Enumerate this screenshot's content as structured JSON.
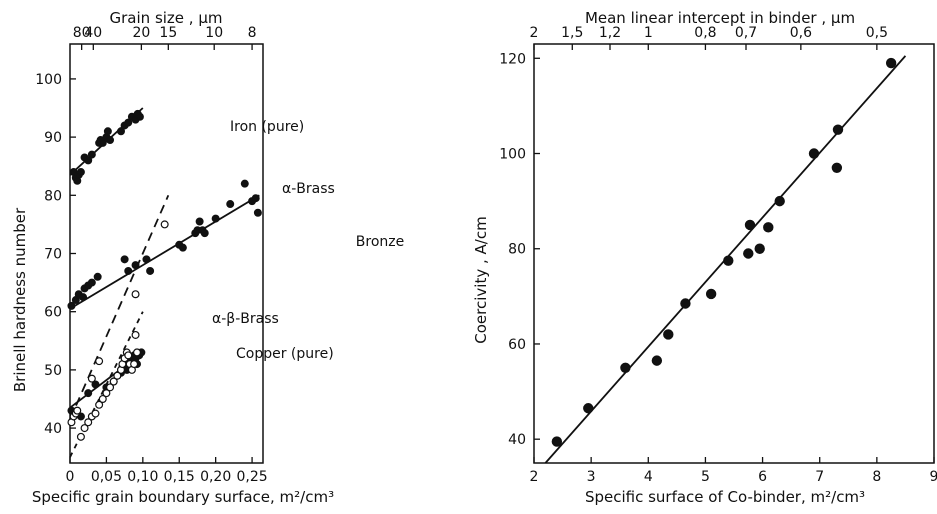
{
  "chart_data": [
    {
      "type": "scatter",
      "xlabel": "Specific grain boundary surface, m²/cm³",
      "ylabel": "Brinell hardness number",
      "top_axis_label": "Grain size , μm",
      "xlim": [
        0,
        0.265
      ],
      "ylim": [
        34,
        106
      ],
      "x_ticks": [
        0,
        0.05,
        0.1,
        0.15,
        0.2,
        0.25
      ],
      "x_tick_labels": [
        "0",
        "0,05",
        "0,10",
        "0,15",
        "0,20",
        "0,25"
      ],
      "y_ticks": [
        40,
        50,
        60,
        70,
        80,
        90,
        100
      ],
      "y_tick_labels": [
        "40",
        "50",
        "60",
        "70",
        "80",
        "90",
        "100"
      ],
      "top_ticks": [
        {
          "label": "80",
          "x": 0.016
        },
        {
          "label": "40",
          "x": 0.032
        },
        {
          "label": "20",
          "x": 0.098
        },
        {
          "label": "15",
          "x": 0.135
        },
        {
          "label": "10",
          "x": 0.198
        },
        {
          "label": "8",
          "x": 0.25
        }
      ],
      "series": [
        {
          "name": "Iron (pure)",
          "marker": "filled",
          "fit": {
            "x": [
              0,
              0.1
            ],
            "y": [
              83.5,
              95
            ]
          },
          "points": [
            [
              0.005,
              84
            ],
            [
              0.008,
              83
            ],
            [
              0.01,
              82.5
            ],
            [
              0.012,
              83.5
            ],
            [
              0.015,
              84
            ],
            [
              0.02,
              86.5
            ],
            [
              0.025,
              86
            ],
            [
              0.03,
              87
            ],
            [
              0.04,
              89
            ],
            [
              0.042,
              89.5
            ],
            [
              0.045,
              89
            ],
            [
              0.05,
              90
            ],
            [
              0.052,
              91
            ],
            [
              0.055,
              89.5
            ],
            [
              0.07,
              91
            ],
            [
              0.075,
              92
            ],
            [
              0.08,
              92.5
            ],
            [
              0.085,
              93.5
            ],
            [
              0.09,
              93
            ],
            [
              0.093,
              94
            ],
            [
              0.096,
              93.5
            ]
          ]
        },
        {
          "name": "Bronze",
          "marker": "filled",
          "fit": {
            "x": [
              0,
              0.26
            ],
            "y": [
              60.5,
              80
            ]
          },
          "points": [
            [
              0.002,
              61
            ],
            [
              0.008,
              62
            ],
            [
              0.012,
              63
            ],
            [
              0.018,
              62.5
            ],
            [
              0.02,
              64
            ],
            [
              0.025,
              64.5
            ],
            [
              0.03,
              65
            ],
            [
              0.038,
              66
            ],
            [
              0.075,
              69
            ],
            [
              0.08,
              67
            ],
            [
              0.09,
              68
            ],
            [
              0.105,
              69
            ],
            [
              0.11,
              67
            ],
            [
              0.15,
              71.5
            ],
            [
              0.155,
              71
            ],
            [
              0.172,
              73.5
            ],
            [
              0.175,
              74
            ],
            [
              0.178,
              75.5
            ],
            [
              0.182,
              74
            ],
            [
              0.185,
              73.5
            ],
            [
              0.2,
              76
            ],
            [
              0.22,
              78.5
            ],
            [
              0.24,
              82
            ],
            [
              0.25,
              79
            ],
            [
              0.255,
              79.5
            ],
            [
              0.258,
              77
            ]
          ]
        },
        {
          "name": "Copper (pure)",
          "marker": "filled",
          "fit": {
            "x": [
              0,
              0.1
            ],
            "y": [
              43.5,
              53
            ]
          },
          "points": [
            [
              0.002,
              43
            ],
            [
              0.015,
              42
            ],
            [
              0.025,
              46
            ],
            [
              0.035,
              47.5
            ],
            [
              0.05,
              47
            ],
            [
              0.06,
              48
            ],
            [
              0.065,
              49
            ],
            [
              0.07,
              49.5
            ],
            [
              0.072,
              50.5
            ],
            [
              0.075,
              51
            ],
            [
              0.078,
              50
            ],
            [
              0.08,
              51.5
            ],
            [
              0.082,
              52
            ],
            [
              0.085,
              51
            ],
            [
              0.088,
              52.5
            ],
            [
              0.09,
              52
            ],
            [
              0.092,
              51
            ],
            [
              0.095,
              52.5
            ],
            [
              0.098,
              53
            ]
          ]
        },
        {
          "name": "α-Brass",
          "marker": "open",
          "fit": {
            "x": [
              0,
              0.135
            ],
            "y": [
              41.5,
              80
            ]
          },
          "points": [
            [
              0.03,
              48.5
            ],
            [
              0.04,
              51.5
            ],
            [
              0.09,
              63
            ],
            [
              0.13,
              75
            ]
          ]
        },
        {
          "name": "α-β-Brass",
          "marker": "open",
          "fit": {
            "x": [
              0,
              0.1
            ],
            "y": [
              35,
              60
            ]
          },
          "points": [
            [
              0.002,
              41
            ],
            [
              0.005,
              42
            ],
            [
              0.008,
              42.5
            ],
            [
              0.01,
              43
            ],
            [
              0.015,
              38.5
            ],
            [
              0.02,
              40
            ],
            [
              0.025,
              41
            ],
            [
              0.03,
              42
            ],
            [
              0.035,
              42.5
            ],
            [
              0.04,
              44
            ],
            [
              0.045,
              45
            ],
            [
              0.05,
              46
            ],
            [
              0.055,
              47
            ],
            [
              0.06,
              48
            ],
            [
              0.065,
              49
            ],
            [
              0.07,
              50
            ],
            [
              0.072,
              51
            ],
            [
              0.075,
              52
            ],
            [
              0.078,
              53
            ],
            [
              0.08,
              52.5
            ],
            [
              0.082,
              51
            ],
            [
              0.085,
              50
            ],
            [
              0.088,
              51
            ],
            [
              0.09,
              56
            ],
            [
              0.092,
              53
            ]
          ]
        }
      ]
    },
    {
      "type": "scatter",
      "xlabel": "Specific surface of Co-binder, m²/cm³",
      "ylabel": "Coercivity , A/cm",
      "top_axis_label": "Mean linear intercept in binder , μm",
      "xlim": [
        2,
        9
      ],
      "ylim": [
        35,
        123
      ],
      "x_ticks": [
        2,
        3,
        4,
        5,
        6,
        7,
        8,
        9
      ],
      "x_tick_labels": [
        "2",
        "3",
        "4",
        "5",
        "6",
        "7",
        "8",
        "9"
      ],
      "y_ticks": [
        40,
        60,
        80,
        100,
        120
      ],
      "y_tick_labels": [
        "40",
        "60",
        "80",
        "100",
        "120"
      ],
      "top_ticks": [
        {
          "label": "2",
          "x": 2.0
        },
        {
          "label": "1,5",
          "x": 2.67
        },
        {
          "label": "1,2",
          "x": 3.33
        },
        {
          "label": "1",
          "x": 4.0
        },
        {
          "label": "0,8",
          "x": 5.0
        },
        {
          "label": "0,7",
          "x": 5.71
        },
        {
          "label": "0,6",
          "x": 6.67
        },
        {
          "label": "0,5",
          "x": 8.0
        }
      ],
      "series": [
        {
          "marker": "filled",
          "fit": {
            "x": [
              2.2,
              8.5
            ],
            "y": [
              35,
              120.5
            ]
          },
          "points": [
            [
              2.4,
              39.5
            ],
            [
              2.95,
              46.5
            ],
            [
              3.6,
              55
            ],
            [
              4.15,
              56.5
            ],
            [
              4.35,
              62
            ],
            [
              4.65,
              68.5
            ],
            [
              5.1,
              70.5
            ],
            [
              5.4,
              77.5
            ],
            [
              5.75,
              79
            ],
            [
              5.78,
              85
            ],
            [
              5.95,
              80
            ],
            [
              6.1,
              84.5
            ],
            [
              6.3,
              90
            ],
            [
              6.9,
              100
            ],
            [
              7.3,
              97
            ],
            [
              7.32,
              105
            ],
            [
              8.25,
              119
            ]
          ]
        }
      ]
    }
  ],
  "series_labels": [
    {
      "chart": 0,
      "series": 0,
      "text": "Iron (pure)"
    },
    {
      "chart": 0,
      "series": 1,
      "text": "Bronze"
    },
    {
      "chart": 0,
      "series": 2,
      "text": "Copper (pure)"
    },
    {
      "chart": 0,
      "series": 3,
      "text": "α-Brass"
    },
    {
      "chart": 0,
      "series": 4,
      "text": "α-β-Brass"
    }
  ]
}
